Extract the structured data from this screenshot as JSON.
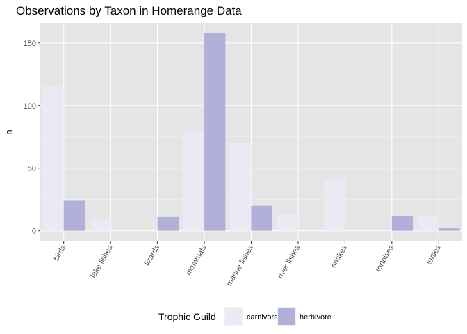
{
  "chart_data": {
    "type": "bar",
    "title": "Observations by Taxon in Homerange Data",
    "xlabel": "",
    "ylabel": "n",
    "categories": [
      "birds",
      "lake fishes",
      "lizards",
      "mammals",
      "marine fishes",
      "river fishes",
      "snakes",
      "tortoises",
      "turtles"
    ],
    "series": [
      {
        "name": "carnivore",
        "color": "#EBE9F3",
        "values": [
          116,
          9,
          0,
          80,
          70,
          14,
          41,
          0,
          12
        ]
      },
      {
        "name": "herbivore",
        "color": "#B1B0D8",
        "values": [
          24,
          0,
          11,
          158,
          20,
          0,
          0,
          12,
          2
        ]
      }
    ],
    "yticks": [
      0,
      50,
      100,
      150
    ],
    "ylim": [
      -8.5,
      166
    ],
    "grid": true,
    "panel_background": "#E5E5E5",
    "grid_color": "#FFFFFF",
    "legend": {
      "title": "Trophic Guild",
      "position": "bottom"
    }
  }
}
